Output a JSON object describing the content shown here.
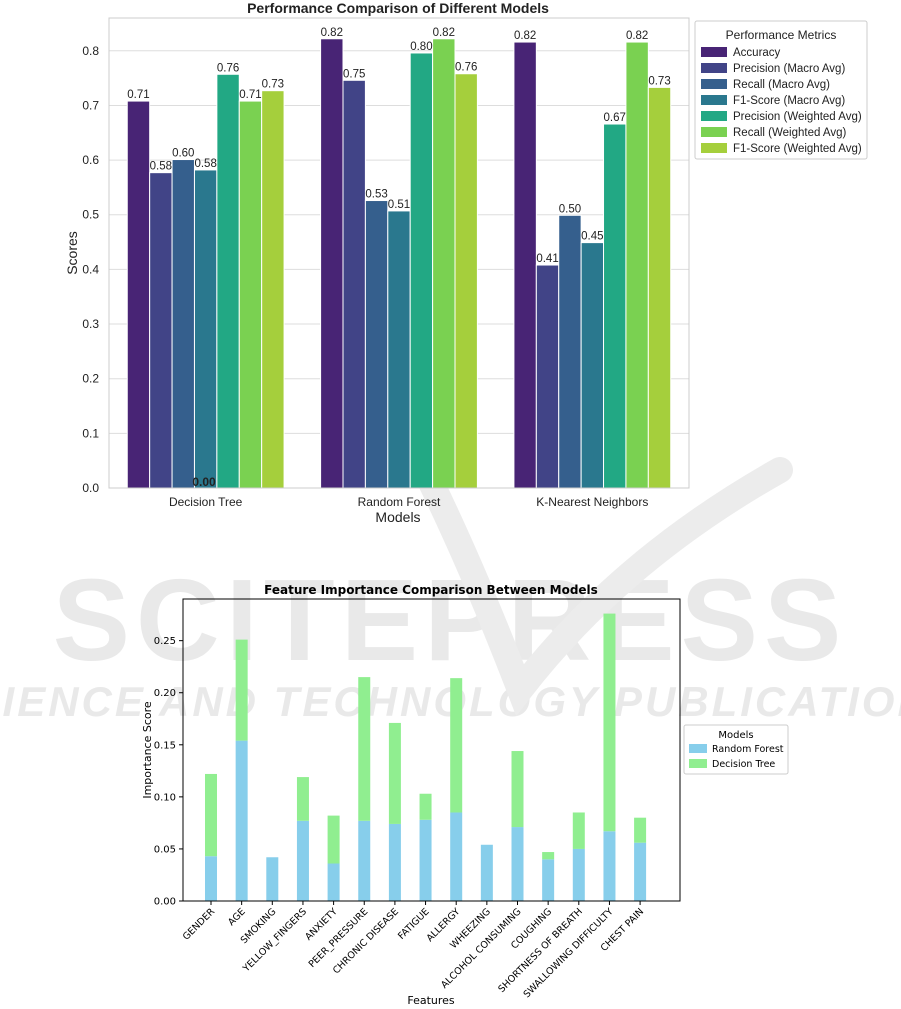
{
  "colors": {
    "c1": [
      "#482475",
      "#414487",
      "#355f8d",
      "#2a788e",
      "#22a884",
      "#7ad151",
      "#a5cf3c"
    ],
    "rf": "#87ceeb",
    "dt": "#90ee90"
  },
  "watermark": {
    "line1": "SCITEPRESS",
    "line2": "SCIENCE AND TECHNOLOGY PUBLICATIONS"
  },
  "chart_data": [
    {
      "type": "bar",
      "title": "Performance Comparison of Different Models",
      "xlabel": "Models",
      "ylabel": "Scores",
      "ylim": [
        0,
        0.86
      ],
      "yticks": [
        "0.0",
        "0.1",
        "0.2",
        "0.3",
        "0.4",
        "0.5",
        "0.6",
        "0.7",
        "0.8"
      ],
      "grid": true,
      "legend_title": "Performance Metrics",
      "legend_position": "outside-right-top",
      "categories": [
        "Decision Tree",
        "Random Forest",
        "K-Nearest Neighbors"
      ],
      "series": [
        {
          "name": "Accuracy",
          "values": [
            0.708,
            0.822,
            0.816
          ],
          "labels": [
            "0.71",
            "0.82",
            "0.82"
          ]
        },
        {
          "name": "Precision (Macro Avg)",
          "values": [
            0.577,
            0.746,
            0.408
          ],
          "labels": [
            "0.58",
            "0.75",
            "0.41"
          ]
        },
        {
          "name": "Recall (Macro Avg)",
          "values": [
            0.601,
            0.526,
            0.499
          ],
          "labels": [
            "0.60",
            "0.53",
            "0.50"
          ]
        },
        {
          "name": "F1-Score (Macro Avg)",
          "values": [
            0.582,
            0.507,
            0.449
          ],
          "labels": [
            "0.58",
            "0.51",
            "0.45"
          ]
        },
        {
          "name": "Precision (Weighted Avg)",
          "values": [
            0.757,
            0.796,
            0.666
          ],
          "labels": [
            "0.76",
            "0.80",
            "0.67"
          ]
        },
        {
          "name": "Recall (Weighted Avg)",
          "values": [
            0.708,
            0.822,
            0.816
          ],
          "labels": [
            "0.71",
            "0.82",
            "0.82"
          ]
        },
        {
          "name": "F1-Score (Weighted Avg)",
          "values": [
            0.727,
            0.758,
            0.733
          ],
          "labels": [
            "0.73",
            "0.76",
            "0.73"
          ]
        }
      ],
      "annotations": [
        {
          "text": "0.00",
          "category": "Decision Tree",
          "value": 0
        }
      ]
    },
    {
      "type": "bar",
      "stacked": true,
      "title": "Feature Importance Comparison Between Models",
      "xlabel": "Features",
      "ylabel": "Importance Score",
      "ylim": [
        0,
        0.29
      ],
      "yticks": [
        "0.00",
        "0.05",
        "0.10",
        "0.15",
        "0.20",
        "0.25"
      ],
      "grid": false,
      "legend_title": "Models",
      "legend_position": "outside-right-center",
      "categories": [
        "GENDER",
        "AGE",
        "SMOKING",
        "YELLOW_FINGERS",
        "ANXIETY",
        "PEER_PRESSURE",
        "CHRONIC DISEASE",
        "FATIGUE",
        "ALLERGY",
        "WHEEZING",
        "ALCOHOL CONSUMING",
        "COUGHING",
        "SHORTNESS OF BREATH",
        "SWALLOWING DIFFICULTY",
        "CHEST PAIN"
      ],
      "series": [
        {
          "name": "Random Forest",
          "values": [
            0.043,
            0.154,
            0.042,
            0.077,
            0.036,
            0.077,
            0.074,
            0.078,
            0.085,
            0.054,
            0.071,
            0.04,
            0.05,
            0.067,
            0.056
          ]
        },
        {
          "name": "Decision Tree",
          "values": [
            0.079,
            0.097,
            0.0,
            0.042,
            0.046,
            0.138,
            0.097,
            0.025,
            0.129,
            0.0,
            0.073,
            0.007,
            0.035,
            0.209,
            0.024
          ]
        }
      ]
    }
  ]
}
